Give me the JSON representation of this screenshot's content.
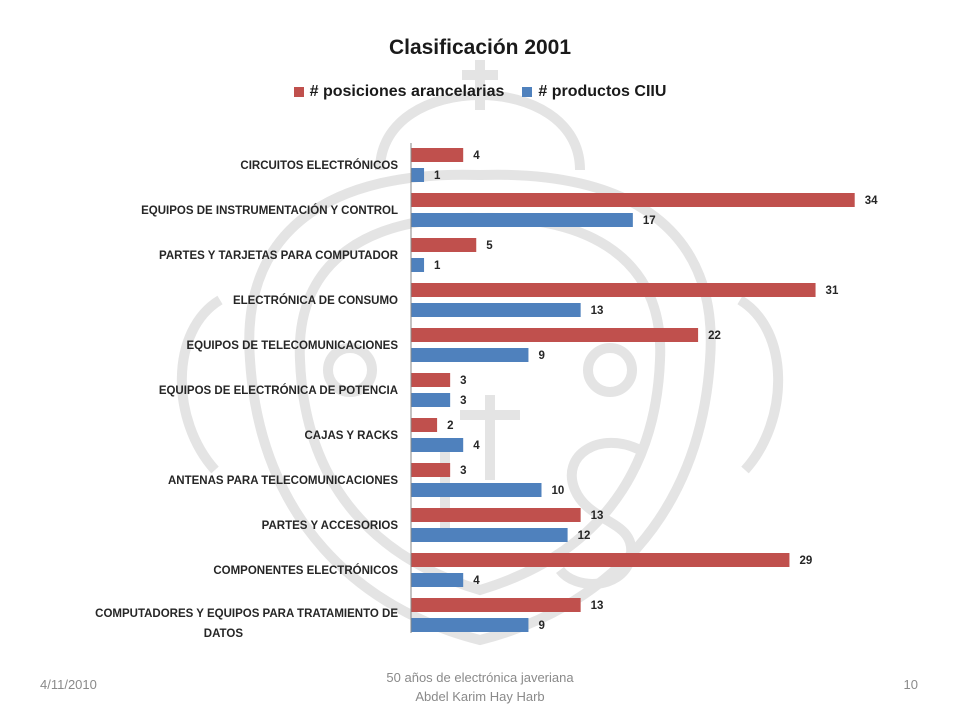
{
  "chart_data": {
    "type": "bar",
    "orientation": "horizontal",
    "title": "Clasificación 2001",
    "legend_position": "top",
    "grid": false,
    "categories": [
      "CIRCUITOS ELECTRÓNICOS",
      "EQUIPOS DE INSTRUMENTACIÓN Y CONTROL",
      "PARTES Y TARJETAS PARA COMPUTADOR",
      "ELECTRÓNICA DE CONSUMO",
      "EQUIPOS DE TELECOMUNICACIONES",
      "EQUIPOS DE ELECTRÓNICA DE POTENCIA",
      "CAJAS Y RACKS",
      "ANTENAS PARA TELECOMUNICACIONES",
      "PARTES Y ACCESORIOS",
      "COMPONENTES ELECTRÓNICOS",
      "COMPUTADORES Y EQUIPOS PARA TRATAMIENTO DE DATOS"
    ],
    "series": [
      {
        "name": "# posiciones arancelarias",
        "color": "#c0504d",
        "values": [
          4,
          34,
          5,
          31,
          22,
          3,
          2,
          3,
          13,
          29,
          13
        ]
      },
      {
        "name": "# productos CIIU",
        "color": "#4f81bd",
        "values": [
          1,
          17,
          1,
          13,
          9,
          3,
          4,
          10,
          12,
          4,
          9
        ]
      }
    ],
    "xlim": [
      0,
      35
    ]
  },
  "footer": {
    "date": "4/11/2010",
    "center_line1": "50 años de electrónica javeriana",
    "center_line2": "Abdel Karim Hay Harb",
    "page_number": "10"
  }
}
